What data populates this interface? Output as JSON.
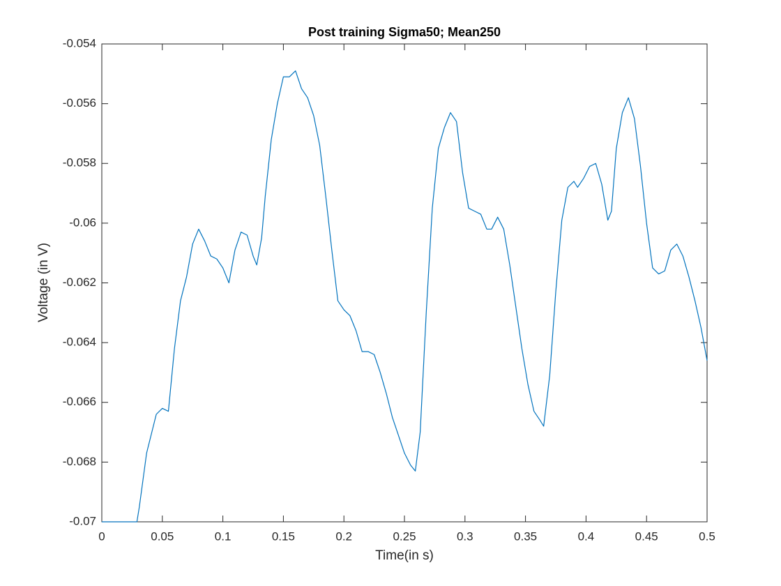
{
  "chart_data": {
    "type": "line",
    "title": "Post training Sigma50; Mean250",
    "xlabel": "Time(in s)",
    "ylabel": "Voltage (in V)",
    "xlim": [
      0,
      0.5
    ],
    "ylim": [
      -0.07,
      -0.054
    ],
    "xticks": [
      0,
      0.05,
      0.1,
      0.15,
      0.2,
      0.25,
      0.3,
      0.35,
      0.4,
      0.45,
      0.5
    ],
    "yticks": [
      -0.07,
      -0.068,
      -0.066,
      -0.064,
      -0.062,
      -0.06,
      -0.058,
      -0.056,
      -0.054
    ],
    "grid": false,
    "series": [
      {
        "color": "#0072bd",
        "x": [
          0,
          0.029,
          0.031,
          0.037,
          0.045,
          0.05,
          0.055,
          0.06,
          0.065,
          0.07,
          0.075,
          0.08,
          0.085,
          0.09,
          0.095,
          0.1,
          0.105,
          0.11,
          0.115,
          0.12,
          0.125,
          0.128,
          0.132,
          0.135,
          0.14,
          0.145,
          0.15,
          0.155,
          0.16,
          0.165,
          0.17,
          0.175,
          0.18,
          0.185,
          0.19,
          0.195,
          0.2,
          0.205,
          0.21,
          0.215,
          0.22,
          0.225,
          0.23,
          0.235,
          0.24,
          0.245,
          0.25,
          0.255,
          0.259,
          0.263,
          0.268,
          0.273,
          0.278,
          0.283,
          0.288,
          0.293,
          0.298,
          0.303,
          0.308,
          0.313,
          0.318,
          0.322,
          0.327,
          0.332,
          0.337,
          0.342,
          0.347,
          0.352,
          0.357,
          0.362,
          0.365,
          0.37,
          0.375,
          0.38,
          0.385,
          0.39,
          0.393,
          0.398,
          0.403,
          0.408,
          0.413,
          0.418,
          0.421,
          0.425,
          0.43,
          0.435,
          0.44,
          0.445,
          0.45,
          0.455,
          0.46,
          0.465,
          0.47,
          0.475,
          0.48,
          0.485,
          0.49,
          0.495,
          0.5
        ],
        "values": [
          -0.07,
          -0.07,
          -0.0695,
          -0.0677,
          -0.0664,
          -0.0662,
          -0.0663,
          -0.0642,
          -0.0626,
          -0.0618,
          -0.0607,
          -0.0602,
          -0.0606,
          -0.0611,
          -0.0612,
          -0.0615,
          -0.062,
          -0.0609,
          -0.0603,
          -0.0604,
          -0.0611,
          -0.0614,
          -0.0605,
          -0.0591,
          -0.0572,
          -0.056,
          -0.0551,
          -0.0551,
          -0.0549,
          -0.0555,
          -0.0558,
          -0.0564,
          -0.0574,
          -0.0591,
          -0.0609,
          -0.0626,
          -0.0629,
          -0.0631,
          -0.0636,
          -0.0643,
          -0.0643,
          -0.0644,
          -0.065,
          -0.0657,
          -0.0665,
          -0.0671,
          -0.0677,
          -0.0681,
          -0.0683,
          -0.067,
          -0.063,
          -0.0595,
          -0.0575,
          -0.0568,
          -0.0563,
          -0.0566,
          -0.0583,
          -0.0595,
          -0.0596,
          -0.0597,
          -0.0602,
          -0.0602,
          -0.0598,
          -0.0602,
          -0.0614,
          -0.0628,
          -0.0642,
          -0.0654,
          -0.0663,
          -0.0666,
          -0.0668,
          -0.0651,
          -0.0623,
          -0.0599,
          -0.0588,
          -0.0586,
          -0.0588,
          -0.0585,
          -0.0581,
          -0.058,
          -0.0587,
          -0.0599,
          -0.0596,
          -0.0575,
          -0.0563,
          -0.0558,
          -0.0565,
          -0.0581,
          -0.06,
          -0.0615,
          -0.0617,
          -0.0616,
          -0.0609,
          -0.0607,
          -0.0611,
          -0.0618,
          -0.0626,
          -0.0635,
          -0.0646
        ]
      }
    ]
  }
}
